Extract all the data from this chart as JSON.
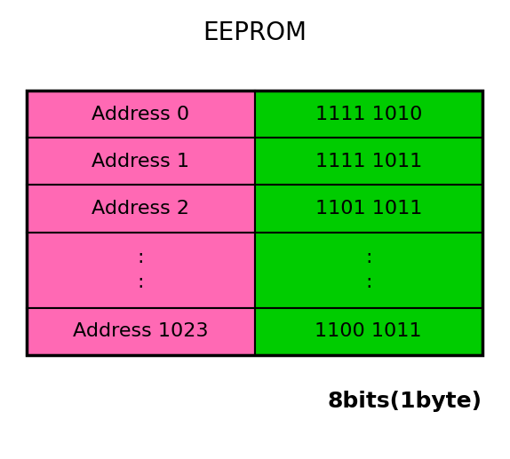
{
  "title": "EEPROM",
  "title_fontsize": 20,
  "footnote": "8bits(1byte)",
  "footnote_fontsize": 18,
  "pink_color": "#FF69B4",
  "green_color": "#00CC00",
  "black": "#000000",
  "white": "#FFFFFF",
  "rows": [
    {
      "left": "Address 0",
      "right": "1111 1010"
    },
    {
      "left": "Address 1",
      "right": "1111 1011"
    },
    {
      "left": "Address 2",
      "right": "1101 1011"
    },
    {
      "left": ":\n:",
      "right": ":\n:"
    },
    {
      "left": "Address 1023",
      "right": "1100 1011"
    }
  ],
  "cell_fontsize": 16,
  "fig_width": 5.74,
  "fig_height": 5.17,
  "dpi": 100
}
